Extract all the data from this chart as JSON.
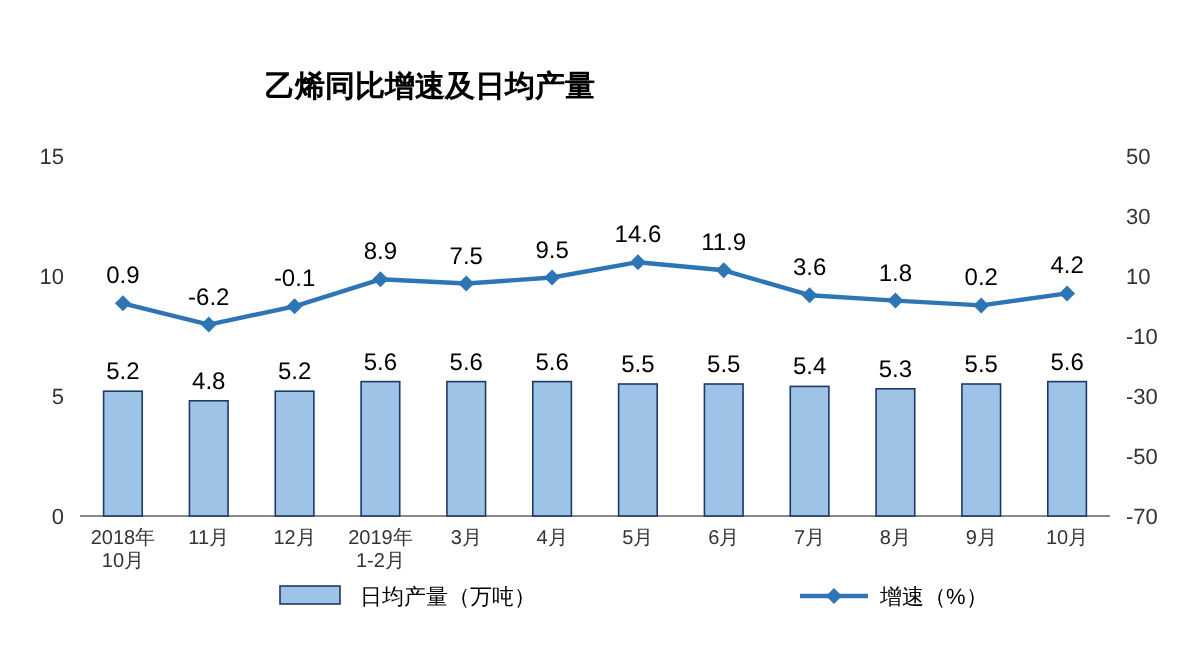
{
  "chart_data": {
    "type": "bar",
    "title": "乙烯同比增速及日均产量",
    "categories": [
      "2018年\n10月",
      "11月",
      "12月",
      "2019年\n1-2月",
      "3月",
      "4月",
      "5月",
      "6月",
      "7月",
      "8月",
      "9月",
      "10月"
    ],
    "series": [
      {
        "name": "日均产量（万吨）",
        "color": "#9dc3e6",
        "values": [
          5.2,
          4.8,
          5.2,
          5.6,
          5.6,
          5.6,
          5.5,
          5.5,
          5.4,
          5.3,
          5.5,
          5.6
        ]
      },
      {
        "name": "增速（%）",
        "type": "line",
        "axis": "y2",
        "color": "#2e75b6",
        "marker": "diamond",
        "values": [
          0.9,
          -6.2,
          -0.1,
          8.9,
          7.5,
          9.5,
          14.6,
          11.9,
          3.6,
          1.8,
          0.2,
          4.2
        ]
      }
    ],
    "ylim": [
      0,
      15
    ],
    "yticks": [
      0,
      5,
      10,
      15
    ],
    "y2lim": [
      -70,
      50
    ],
    "y2ticks": [
      -70,
      -50,
      -30,
      -10,
      10,
      30,
      50
    ],
    "data_labels": true,
    "legend": "bottom",
    "grid": false
  }
}
